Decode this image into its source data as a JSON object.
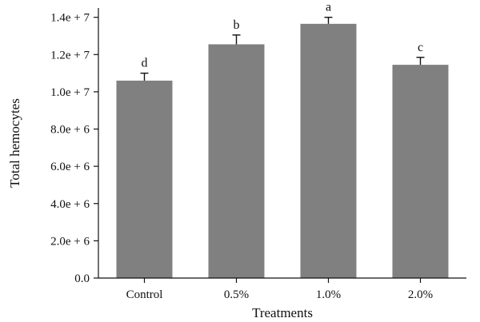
{
  "chart_data": {
    "type": "bar",
    "title": "",
    "xlabel": "Treatments",
    "ylabel": "Total hemocytes",
    "ylim": [
      0,
      14500000
    ],
    "yticks": [
      0,
      2000000,
      4000000,
      6000000,
      8000000,
      10000000,
      12000000,
      14000000
    ],
    "ytick_labels": [
      "0.0",
      "2.0e + 6",
      "4.0e + 6",
      "6.0e + 6",
      "8.0e + 6",
      "1.0e + 7",
      "1.2e + 7",
      "1.4e + 7"
    ],
    "categories": [
      "Control",
      "0.5%",
      "1.0%",
      "2.0%"
    ],
    "values": [
      10600000,
      12550000,
      13650000,
      11450000
    ],
    "errors": [
      400000,
      500000,
      350000,
      400000
    ],
    "significance_labels": [
      "d",
      "b",
      "a",
      "c"
    ],
    "grid": false,
    "legend": "none",
    "bar_color": "#808080"
  }
}
